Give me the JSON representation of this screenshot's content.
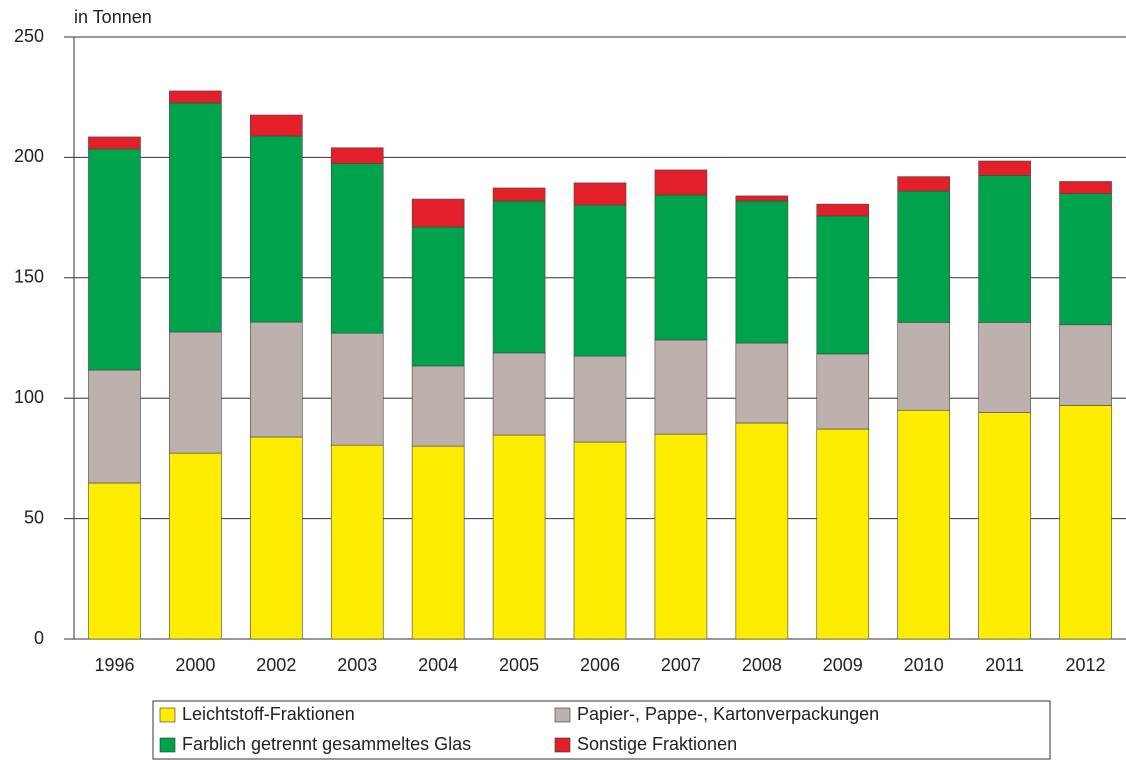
{
  "chart_data": {
    "type": "stacked_bar",
    "y_label": "in Tonnen",
    "categories": [
      "1996",
      "2000",
      "2002",
      "2003",
      "2004",
      "2005",
      "2006",
      "2007",
      "2008",
      "2009",
      "2010",
      "2011",
      "2012"
    ],
    "series": [
      {
        "name": "Leichtstoff-Fraktionen",
        "color": "#ffed00",
        "values": [
          64.8,
          77.2,
          83.9,
          80.5,
          80.1,
          84.7,
          81.8,
          85.1,
          89.7,
          87.2,
          95.0,
          94.0,
          97.0
        ]
      },
      {
        "name": "Papier-, Pappe-, Kartonverpackungen",
        "color": "#bdb1ae",
        "values": [
          46.9,
          50.3,
          47.7,
          46.5,
          33.3,
          34.1,
          35.7,
          39.1,
          33.2,
          31.2,
          36.5,
          37.5,
          33.5
        ]
      },
      {
        "name": "Farblich getrennt gesammeltes Glas",
        "color": "#00a24b",
        "values": [
          91.8,
          95.1,
          77.3,
          70.5,
          57.7,
          63.1,
          62.7,
          60.2,
          59.0,
          57.3,
          54.5,
          61.0,
          54.5
        ]
      },
      {
        "name": "Sonstige Fraktionen",
        "color": "#e3202a",
        "values": [
          5.0,
          5.0,
          8.7,
          6.5,
          11.6,
          5.4,
          9.2,
          10.4,
          2.1,
          4.9,
          6.0,
          6.0,
          5.0
        ]
      }
    ],
    "ylim": [
      0,
      250
    ],
    "yticks": [
      0,
      50,
      100,
      150,
      200,
      250
    ],
    "grid": true,
    "legend": "bottom"
  }
}
